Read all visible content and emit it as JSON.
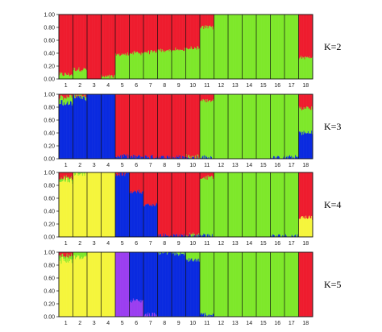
{
  "chart_data": {
    "type": "stacked_bar",
    "description_panels": "STRUCTURE admixture bar plots",
    "ylim": [
      0,
      1
    ],
    "y_ticks": [
      "0.00",
      "0.20",
      "0.40",
      "0.60",
      "0.80",
      "1.00"
    ],
    "populations": [
      "1",
      "2",
      "3",
      "4",
      "5",
      "6",
      "7",
      "8",
      "9",
      "10",
      "11",
      "12",
      "13",
      "14",
      "15",
      "16",
      "17",
      "18"
    ],
    "colors": {
      "red": "#ee1c2e",
      "green": "#7ee82a",
      "blue": "#0b2be0",
      "yellow": "#f5f53c",
      "purple": "#9b3ef0"
    },
    "panels": [
      {
        "label": "K=2",
        "clusters": [
          "red",
          "green"
        ],
        "pop_fractions": [
          [
            0.93,
            0.07
          ],
          [
            0.85,
            0.15
          ],
          [
            1.0,
            0.0
          ],
          [
            0.97,
            0.03
          ],
          [
            0.62,
            0.38
          ],
          [
            0.6,
            0.4
          ],
          [
            0.58,
            0.42
          ],
          [
            0.56,
            0.44
          ],
          [
            0.55,
            0.45
          ],
          [
            0.52,
            0.48
          ],
          [
            0.2,
            0.8
          ],
          [
            0.0,
            1.0
          ],
          [
            0.0,
            1.0
          ],
          [
            0.0,
            1.0
          ],
          [
            0.0,
            1.0
          ],
          [
            0.0,
            1.0
          ],
          [
            0.0,
            1.0
          ],
          [
            0.67,
            0.33
          ]
        ]
      },
      {
        "label": "K=3",
        "clusters": [
          "red",
          "green",
          "blue"
        ],
        "pop_fractions": [
          [
            0.05,
            0.1,
            0.85
          ],
          [
            0.02,
            0.02,
            0.96
          ],
          [
            0.0,
            0.0,
            1.0
          ],
          [
            0.0,
            0.0,
            1.0
          ],
          [
            0.96,
            0.0,
            0.04
          ],
          [
            0.97,
            0.0,
            0.03
          ],
          [
            0.97,
            0.0,
            0.03
          ],
          [
            0.98,
            0.0,
            0.02
          ],
          [
            0.98,
            0.0,
            0.02
          ],
          [
            0.97,
            0.02,
            0.01
          ],
          [
            0.1,
            0.88,
            0.02
          ],
          [
            0.0,
            1.0,
            0.0
          ],
          [
            0.0,
            1.0,
            0.0
          ],
          [
            0.0,
            1.0,
            0.0
          ],
          [
            0.0,
            1.0,
            0.0
          ],
          [
            0.0,
            0.99,
            0.01
          ],
          [
            0.0,
            0.98,
            0.02
          ],
          [
            0.22,
            0.38,
            0.4
          ]
        ]
      },
      {
        "label": "K=4",
        "clusters": [
          "red",
          "green",
          "blue",
          "yellow"
        ],
        "pop_fractions": [
          [
            0.08,
            0.04,
            0.0,
            0.88
          ],
          [
            0.0,
            0.02,
            0.0,
            0.98
          ],
          [
            0.0,
            0.0,
            0.0,
            1.0
          ],
          [
            0.0,
            0.0,
            0.0,
            1.0
          ],
          [
            0.02,
            0.0,
            0.98,
            0.0
          ],
          [
            0.3,
            0.0,
            0.7,
            0.0
          ],
          [
            0.5,
            0.0,
            0.5,
            0.0
          ],
          [
            0.98,
            0.0,
            0.02,
            0.0
          ],
          [
            0.99,
            0.0,
            0.01,
            0.0
          ],
          [
            0.98,
            0.01,
            0.01,
            0.0
          ],
          [
            0.08,
            0.9,
            0.02,
            0.0
          ],
          [
            0.0,
            1.0,
            0.0,
            0.0
          ],
          [
            0.0,
            1.0,
            0.0,
            0.0
          ],
          [
            0.0,
            1.0,
            0.0,
            0.0
          ],
          [
            0.0,
            1.0,
            0.0,
            0.0
          ],
          [
            0.0,
            0.99,
            0.01,
            0.0
          ],
          [
            0.0,
            0.99,
            0.01,
            0.0
          ],
          [
            0.7,
            0.0,
            0.0,
            0.3
          ]
        ]
      },
      {
        "label": "K=5",
        "clusters": [
          "red",
          "green",
          "blue",
          "yellow",
          "purple"
        ],
        "pop_fractions": [
          [
            0.05,
            0.07,
            0.0,
            0.88,
            0.0
          ],
          [
            0.0,
            0.08,
            0.0,
            0.92,
            0.0
          ],
          [
            0.0,
            0.0,
            0.0,
            1.0,
            0.0
          ],
          [
            0.0,
            0.0,
            0.0,
            1.0,
            0.0
          ],
          [
            0.0,
            0.0,
            0.0,
            0.0,
            1.0
          ],
          [
            0.0,
            0.0,
            0.75,
            0.0,
            0.25
          ],
          [
            0.0,
            0.0,
            0.97,
            0.0,
            0.03
          ],
          [
            0.0,
            0.01,
            0.99,
            0.0,
            0.0
          ],
          [
            0.0,
            0.02,
            0.98,
            0.0,
            0.0
          ],
          [
            0.0,
            0.12,
            0.88,
            0.0,
            0.0
          ],
          [
            0.0,
            0.97,
            0.03,
            0.0,
            0.0
          ],
          [
            0.0,
            1.0,
            0.0,
            0.0,
            0.0
          ],
          [
            0.0,
            1.0,
            0.0,
            0.0,
            0.0
          ],
          [
            0.0,
            1.0,
            0.0,
            0.0,
            0.0
          ],
          [
            0.0,
            1.0,
            0.0,
            0.0,
            0.0
          ],
          [
            0.0,
            1.0,
            0.0,
            0.0,
            0.0
          ],
          [
            0.0,
            1.0,
            0.0,
            0.0,
            0.0
          ],
          [
            1.0,
            0.0,
            0.0,
            0.0,
            0.0
          ]
        ]
      }
    ]
  }
}
